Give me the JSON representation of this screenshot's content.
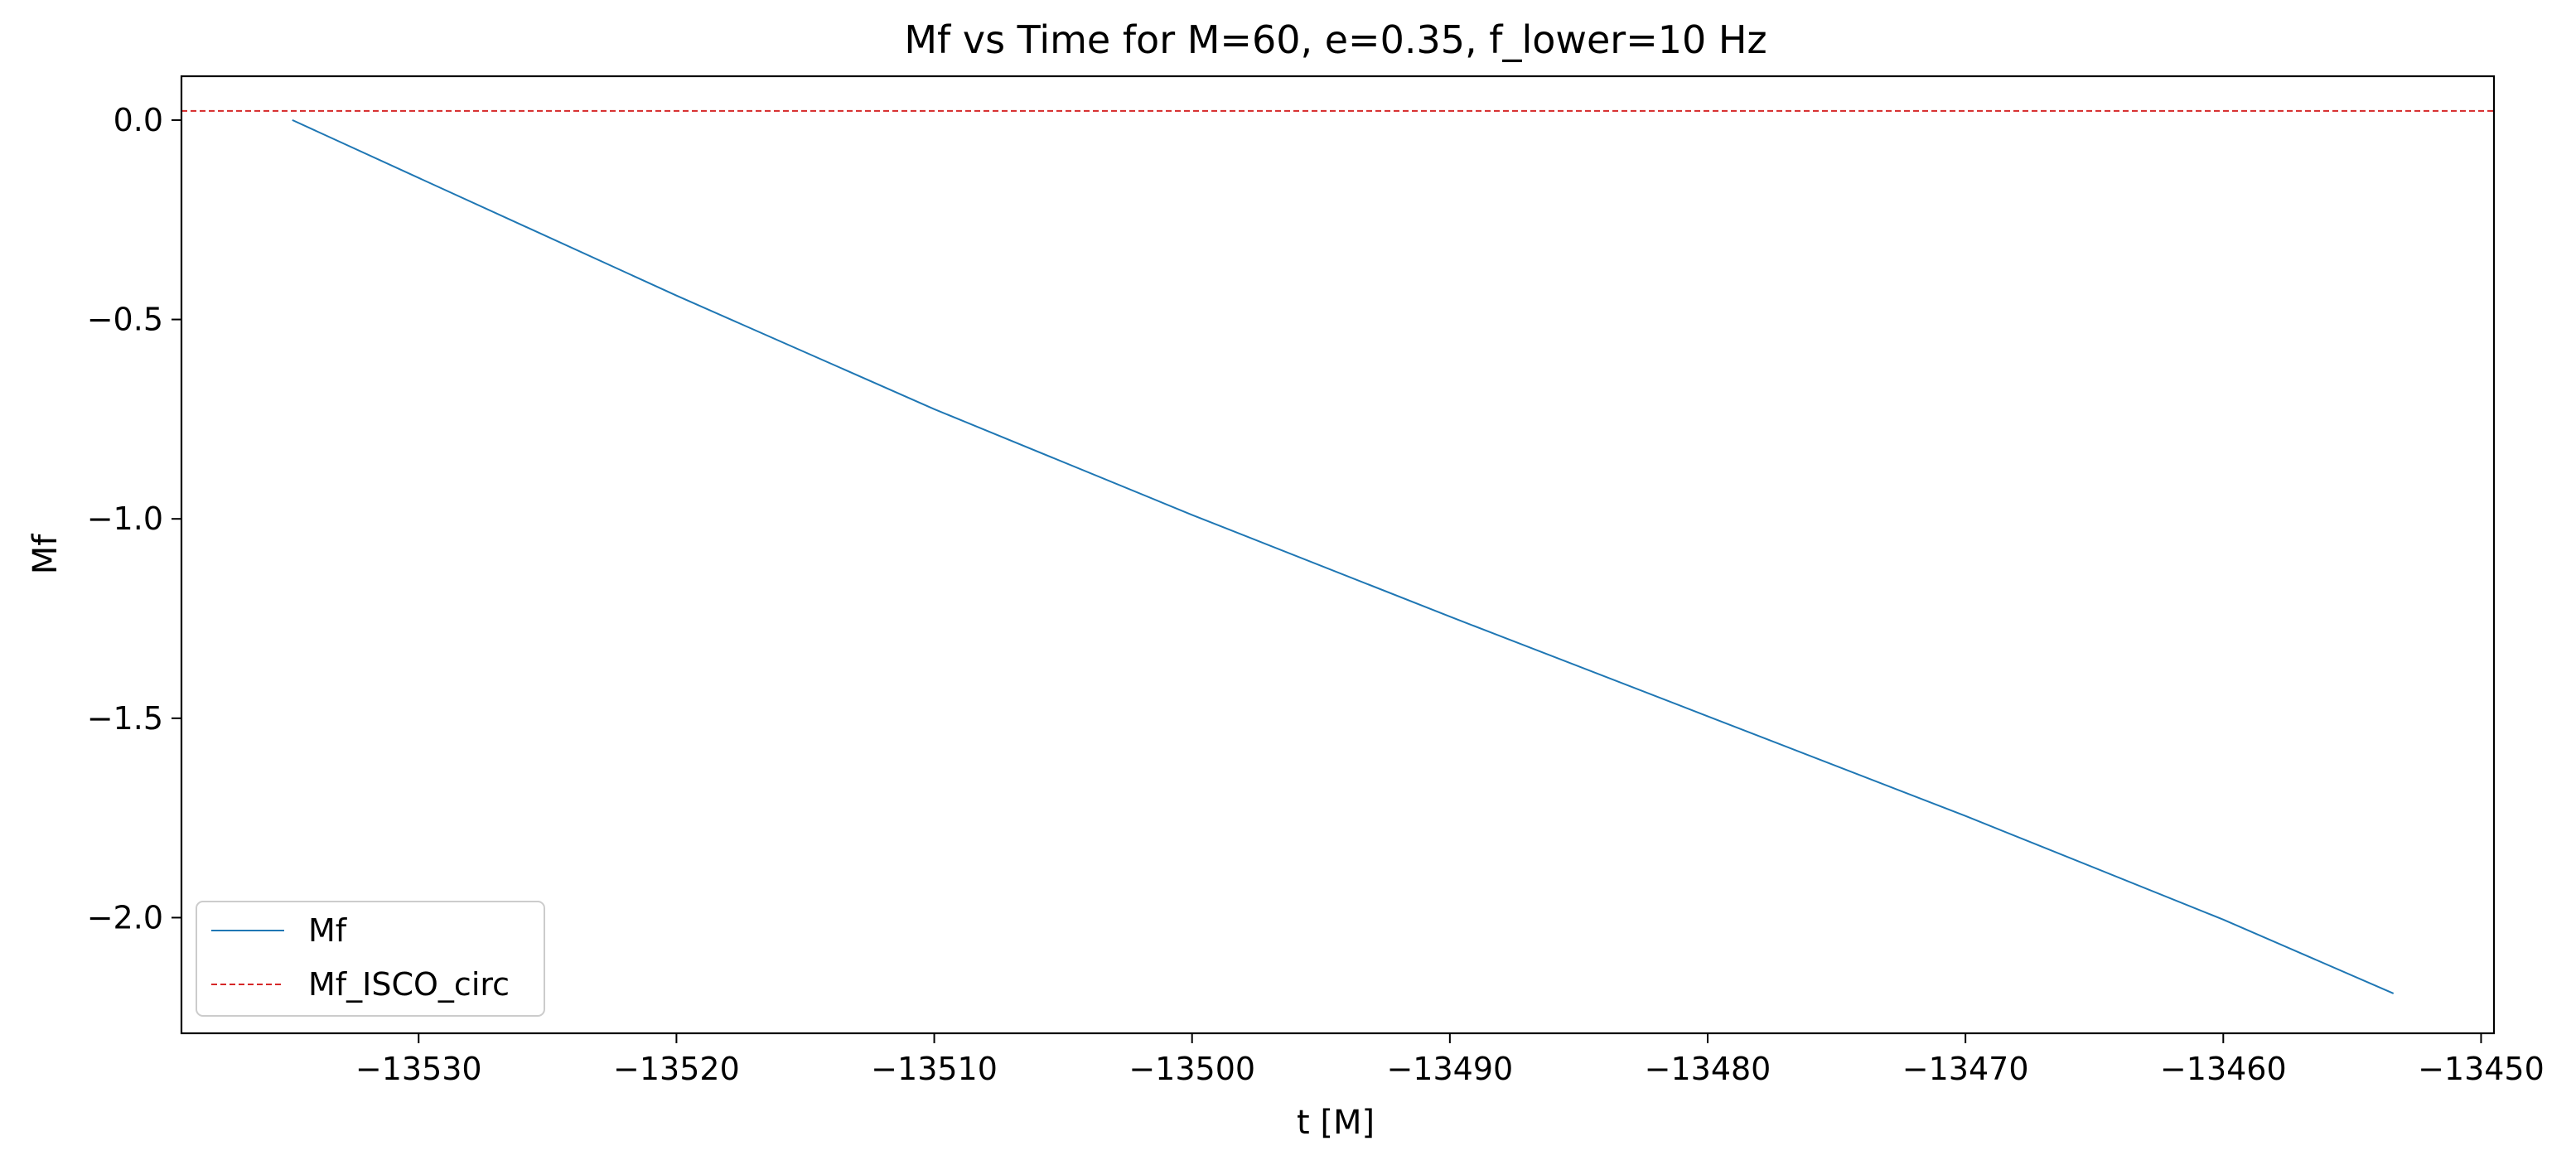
{
  "chart_data": {
    "type": "line",
    "title": "Mf vs Time for M=60, e=0.35, f_lower=10 Hz",
    "xlabel": "t [M]",
    "ylabel": "Mf",
    "xlim": [
      -13539.2,
      -13449.5
    ],
    "ylim": [
      -2.29,
      0.11
    ],
    "xticks": [
      {
        "value": -13530,
        "label": "−13530"
      },
      {
        "value": -13520,
        "label": "−13520"
      },
      {
        "value": -13510,
        "label": "−13510"
      },
      {
        "value": -13500,
        "label": "−13500"
      },
      {
        "value": -13490,
        "label": "−13490"
      },
      {
        "value": -13480,
        "label": "−13480"
      },
      {
        "value": -13470,
        "label": "−13470"
      },
      {
        "value": -13460,
        "label": "−13460"
      },
      {
        "value": -13450,
        "label": "−13450"
      }
    ],
    "yticks": [
      {
        "value": 0.0,
        "label": "0.0"
      },
      {
        "value": -0.5,
        "label": "−0.5"
      },
      {
        "value": -1.0,
        "label": "−1.0"
      },
      {
        "value": -1.5,
        "label": "−1.5"
      },
      {
        "value": -2.0,
        "label": "−2.0"
      }
    ],
    "grid": false,
    "legend_position": "lower-left",
    "series": [
      {
        "name": "Mf",
        "color": "#1f77b4",
        "style": "solid",
        "x": [
          -13534.9,
          -13530,
          -13520,
          -13510,
          -13500,
          -13490,
          -13480,
          -13470,
          -13460,
          -13453.4
        ],
        "y": [
          0.0,
          -0.145,
          -0.44,
          -0.725,
          -0.99,
          -1.245,
          -1.495,
          -1.745,
          -2.005,
          -2.19
        ]
      },
      {
        "name": "Mf_ISCO_circ",
        "color": "#d62728",
        "style": "dashed",
        "type": "hline",
        "y": 0.023
      }
    ]
  }
}
